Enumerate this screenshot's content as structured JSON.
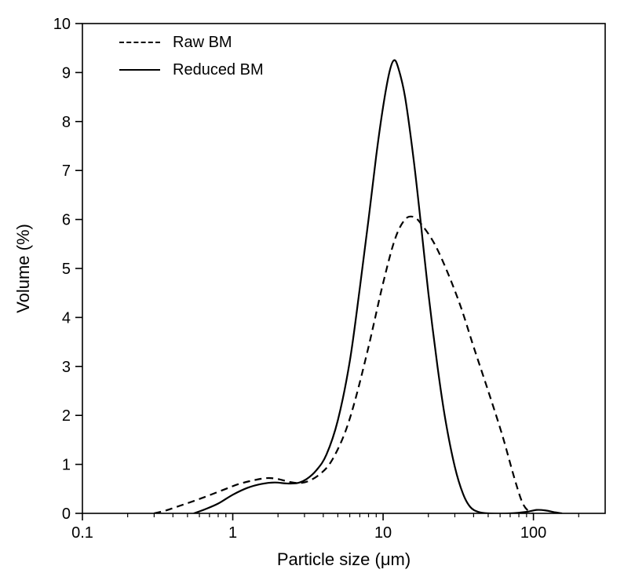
{
  "chart_data": {
    "type": "line",
    "title": "",
    "xlabel": "Particle size (μm)",
    "ylabel": "Volume (%)",
    "x_scale": "log",
    "xlim": [
      0.1,
      300
    ],
    "ylim": [
      0,
      10
    ],
    "x_major_ticks": [
      0.1,
      1,
      10,
      100
    ],
    "x_major_tick_labels": [
      "0.1",
      "1",
      "10",
      "100"
    ],
    "y_major_ticks": [
      0,
      1,
      2,
      3,
      4,
      5,
      6,
      7,
      8,
      9,
      10
    ],
    "grid": false,
    "legend_position": "top-left",
    "frame": "full-box",
    "line_color": "#000000",
    "series": [
      {
        "name": "Raw BM",
        "line_style": "dashed",
        "color": "#000000",
        "points": [
          [
            0.3,
            0.0
          ],
          [
            0.36,
            0.06
          ],
          [
            0.45,
            0.16
          ],
          [
            0.56,
            0.26
          ],
          [
            0.7,
            0.37
          ],
          [
            0.9,
            0.5
          ],
          [
            1.1,
            0.6
          ],
          [
            1.4,
            0.68
          ],
          [
            1.7,
            0.72
          ],
          [
            2.0,
            0.7
          ],
          [
            2.4,
            0.64
          ],
          [
            2.8,
            0.62
          ],
          [
            3.2,
            0.66
          ],
          [
            3.8,
            0.8
          ],
          [
            4.5,
            1.05
          ],
          [
            5.5,
            1.6
          ],
          [
            6.5,
            2.3
          ],
          [
            8.0,
            3.4
          ],
          [
            10,
            4.7
          ],
          [
            12,
            5.6
          ],
          [
            14,
            6.0
          ],
          [
            16,
            6.05
          ],
          [
            18,
            5.9
          ],
          [
            22,
            5.5
          ],
          [
            27,
            4.9
          ],
          [
            33,
            4.2
          ],
          [
            40,
            3.4
          ],
          [
            50,
            2.5
          ],
          [
            62,
            1.6
          ],
          [
            75,
            0.7
          ],
          [
            85,
            0.2
          ],
          [
            95,
            0.02
          ],
          [
            100,
            0.0
          ]
        ]
      },
      {
        "name": "Reduced BM",
        "line_style": "solid",
        "color": "#000000",
        "points": [
          [
            0.55,
            0.0
          ],
          [
            0.65,
            0.08
          ],
          [
            0.8,
            0.2
          ],
          [
            1.0,
            0.38
          ],
          [
            1.25,
            0.52
          ],
          [
            1.55,
            0.6
          ],
          [
            1.9,
            0.63
          ],
          [
            2.3,
            0.61
          ],
          [
            2.7,
            0.62
          ],
          [
            3.1,
            0.7
          ],
          [
            3.6,
            0.88
          ],
          [
            4.2,
            1.2
          ],
          [
            5.0,
            1.9
          ],
          [
            6.0,
            3.1
          ],
          [
            7.0,
            4.6
          ],
          [
            8.0,
            6.0
          ],
          [
            9.0,
            7.3
          ],
          [
            10,
            8.3
          ],
          [
            11,
            9.0
          ],
          [
            11.8,
            9.25
          ],
          [
            12.6,
            9.1
          ],
          [
            14,
            8.5
          ],
          [
            16,
            7.2
          ],
          [
            18,
            5.8
          ],
          [
            20,
            4.5
          ],
          [
            23,
            3.0
          ],
          [
            26,
            1.9
          ],
          [
            30,
            0.95
          ],
          [
            34,
            0.4
          ],
          [
            38,
            0.13
          ],
          [
            43,
            0.03
          ],
          [
            50,
            0.0
          ],
          [
            70,
            0.0
          ],
          [
            90,
            0.03
          ],
          [
            105,
            0.07
          ],
          [
            120,
            0.06
          ],
          [
            140,
            0.02
          ],
          [
            155,
            0.0
          ]
        ]
      }
    ]
  }
}
